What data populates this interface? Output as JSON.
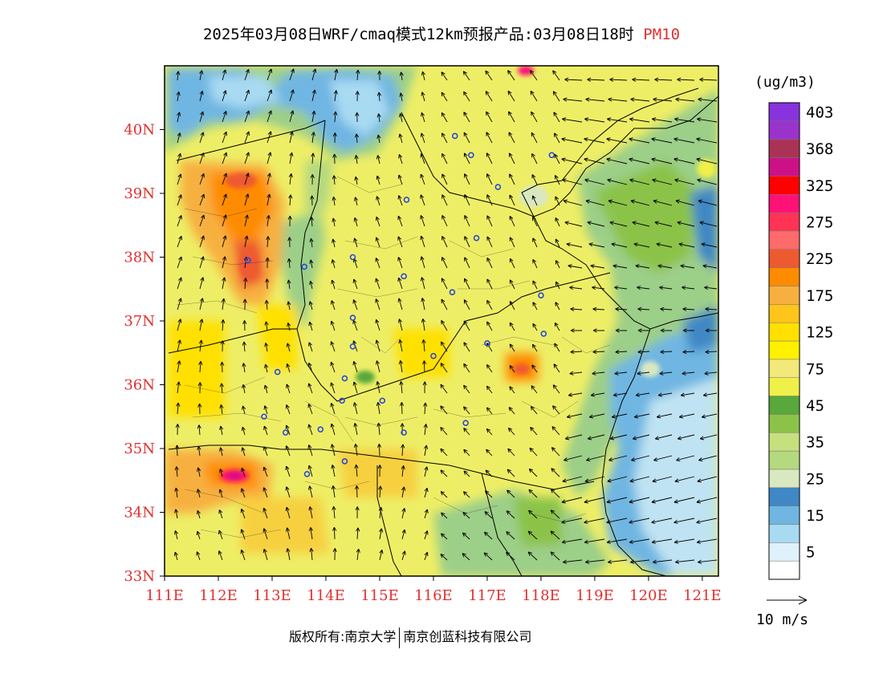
{
  "title": {
    "text": "2025年03月08日WRF/cmaq模式12km预报产品:03月08日18时",
    "species": "PM10"
  },
  "colors": {
    "axis_label": "#e03030",
    "land_base": "#eeee66",
    "sea": "#bfe3f2",
    "border": "#000000",
    "city_marker": "#2a4ad6"
  },
  "map": {
    "lon_range": [
      111,
      121.3
    ],
    "lat_range": [
      33,
      41
    ],
    "x_ticks": [
      "111E",
      "112E",
      "113E",
      "114E",
      "115E",
      "116E",
      "117E",
      "118E",
      "119E",
      "120E",
      "121E"
    ],
    "y_ticks": [
      "33N",
      "34N",
      "35N",
      "36N",
      "37N",
      "38N",
      "39N",
      "40N"
    ]
  },
  "legend": {
    "unit": "(ug/m3)",
    "bins": [
      {
        "label": "",
        "color": "#ffffff"
      },
      {
        "label": "5",
        "color": "#dff1fb"
      },
      {
        "label": "",
        "color": "#a8daf2"
      },
      {
        "label": "15",
        "color": "#6fb6e2"
      },
      {
        "label": "",
        "color": "#3f88c5"
      },
      {
        "label": "25",
        "color": "#d9e8c0"
      },
      {
        "label": "",
        "color": "#b5d97f"
      },
      {
        "label": "35",
        "color": "#c7e07e"
      },
      {
        "label": "",
        "color": "#8bc34a"
      },
      {
        "label": "45",
        "color": "#58a83b"
      },
      {
        "label": "",
        "color": "#f0f04a"
      },
      {
        "label": "75",
        "color": "#f3e87a"
      },
      {
        "label": "",
        "color": "#fff100"
      },
      {
        "label": "125",
        "color": "#ffe000"
      },
      {
        "label": "",
        "color": "#ffc51a"
      },
      {
        "label": "175",
        "color": "#f7b040"
      },
      {
        "label": "",
        "color": "#ff8c00"
      },
      {
        "label": "225",
        "color": "#ee5a30"
      },
      {
        "label": "",
        "color": "#ff6a6a"
      },
      {
        "label": "275",
        "color": "#ff3355"
      },
      {
        "label": "",
        "color": "#ff1177"
      },
      {
        "label": "325",
        "color": "#ff0000"
      },
      {
        "label": "",
        "color": "#cc1188"
      },
      {
        "label": "368",
        "color": "#aa3355"
      },
      {
        "label": "",
        "color": "#9a33cc"
      },
      {
        "label": "403",
        "color": "#8833dd"
      }
    ]
  },
  "wind_ref": {
    "label": "10 m/s"
  },
  "footer": {
    "left": "版权所有:南京大学",
    "right": "南京创蓝科技有限公司"
  }
}
